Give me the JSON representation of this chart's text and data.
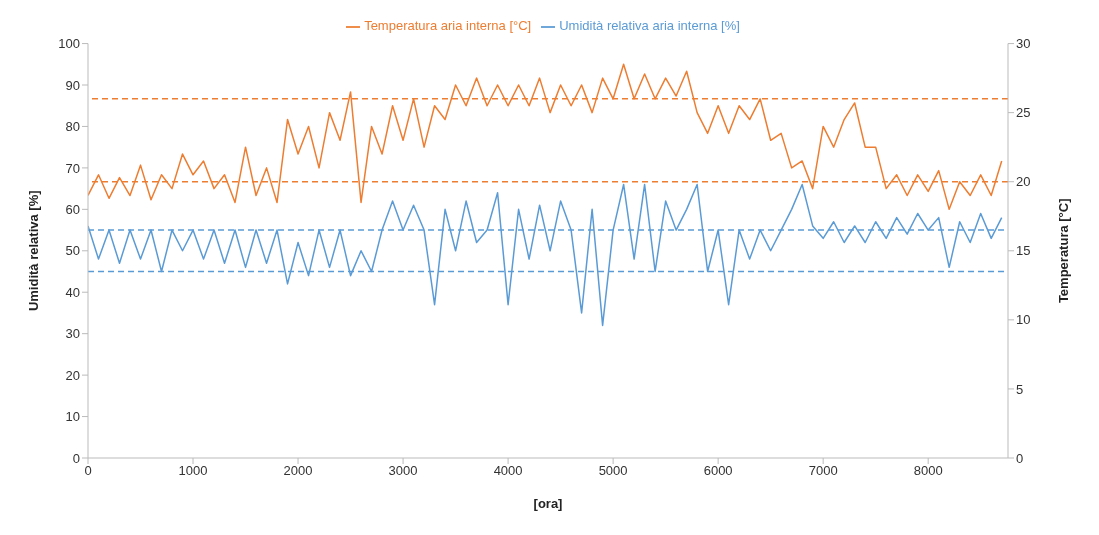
{
  "chart_data": {
    "type": "line",
    "xlabel": "[ora]",
    "ylabel": "Umidità relativa [%]",
    "y2label": "Temperatura [°C]",
    "x": [
      0,
      100,
      200,
      300,
      400,
      500,
      600,
      700,
      800,
      900,
      1000,
      1100,
      1200,
      1300,
      1400,
      1500,
      1600,
      1700,
      1800,
      1900,
      2000,
      2100,
      2200,
      2300,
      2400,
      2500,
      2600,
      2700,
      2800,
      2900,
      3000,
      3100,
      3200,
      3300,
      3400,
      3500,
      3600,
      3700,
      3800,
      3900,
      4000,
      4100,
      4200,
      4300,
      4400,
      4500,
      4600,
      4700,
      4800,
      4900,
      5000,
      5100,
      5200,
      5300,
      5400,
      5500,
      5600,
      5700,
      5800,
      5900,
      6000,
      6100,
      6200,
      6300,
      6400,
      6500,
      6600,
      6700,
      6800,
      6900,
      7000,
      7100,
      7200,
      7300,
      7400,
      7500,
      7600,
      7700,
      7800,
      7900,
      8000,
      8100,
      8200,
      8300,
      8400,
      8500,
      8600,
      8700
    ],
    "series": [
      {
        "name": "Umidità relativa aria interna [%]",
        "color": "#5b9bd5",
        "values": [
          56,
          48,
          55,
          47,
          55,
          48,
          55,
          45,
          55,
          50,
          55,
          48,
          55,
          47,
          55,
          46,
          55,
          47,
          55,
          42,
          52,
          44,
          55,
          46,
          55,
          44,
          50,
          45,
          55,
          62,
          55,
          61,
          55,
          37,
          60,
          50,
          62,
          52,
          55,
          64,
          37,
          60,
          48,
          61,
          50,
          62,
          55,
          35,
          60,
          32,
          55,
          66,
          48,
          66,
          45,
          62,
          55,
          60,
          66,
          45,
          55,
          37,
          55,
          48,
          55,
          50,
          55,
          60,
          66,
          56,
          53,
          57,
          52,
          56,
          52,
          57,
          53,
          58,
          54,
          59,
          55,
          58,
          46,
          57,
          52,
          59,
          53,
          58
        ]
      },
      {
        "name": "Temperatura aria interna [°C]",
        "color": "#ed7d31",
        "axis": "y2",
        "values": [
          19,
          20.5,
          18.8,
          20.3,
          19,
          21.2,
          18.7,
          20.5,
          19.5,
          22,
          20.5,
          21.5,
          19.5,
          20.5,
          18.5,
          22.5,
          19,
          21,
          18.5,
          24.5,
          22,
          24,
          21,
          25,
          23,
          26.5,
          18.5,
          24,
          22,
          25.5,
          23,
          26,
          22.5,
          25.5,
          24.5,
          27,
          25.5,
          27.5,
          25.5,
          27,
          25.5,
          27,
          25.5,
          27.5,
          25,
          27,
          25.5,
          27,
          25,
          27.5,
          26,
          28.5,
          26,
          27.8,
          26,
          27.5,
          26.2,
          28,
          25,
          23.5,
          25.5,
          23.5,
          25.5,
          24.5,
          26,
          23,
          23.5,
          21,
          21.5,
          19.5,
          24,
          22.5,
          24.5,
          25.7,
          22.5,
          22.5,
          19.5,
          20.5,
          19,
          20.5,
          19.3,
          20.8,
          18,
          20,
          19,
          20.5,
          19,
          21.5
        ]
      }
    ],
    "xlim": [
      0,
      8760
    ],
    "xticks": [
      0,
      1000,
      2000,
      3000,
      4000,
      5000,
      6000,
      7000,
      8000
    ],
    "ylim": [
      0,
      100
    ],
    "yticks": [
      0,
      10,
      20,
      30,
      40,
      50,
      60,
      70,
      80,
      90,
      100
    ],
    "y2lim": [
      0,
      30
    ],
    "y2ticks": [
      0,
      5,
      10,
      15,
      20,
      25,
      30
    ],
    "ref_lines": [
      {
        "axis": "y",
        "value": 55,
        "color": "#5b9bd5",
        "line_style": "dashed"
      },
      {
        "axis": "y",
        "value": 45,
        "color": "#5b9bd5",
        "line_style": "dashed"
      },
      {
        "axis": "y2",
        "value": 26,
        "color": "#ed7d31",
        "line_style": "dashed"
      },
      {
        "axis": "y2",
        "value": 20,
        "color": "#ed7d31",
        "line_style": "dashed"
      }
    ],
    "legend": "top",
    "grid": false,
    "marker": "none",
    "line_style": "solid"
  }
}
